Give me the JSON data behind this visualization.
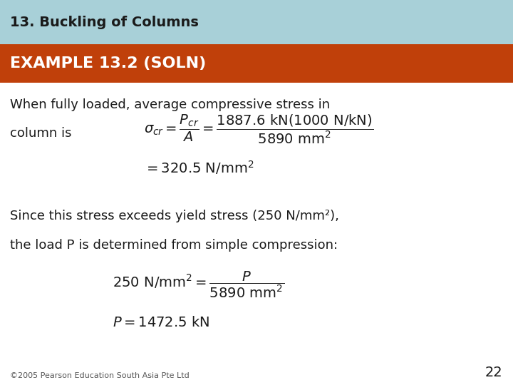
{
  "title_text": "13. Buckling of Columns",
  "title_bg": "#a8d0d8",
  "title_color": "#1a1a1a",
  "subtitle_text": "EXAMPLE 13.2 (SOLN)",
  "subtitle_bg": "#c0400a",
  "subtitle_color": "#ffffff",
  "body_bg": "#ffffff",
  "body_text_color": "#1a1a1a",
  "intro_line1": "When fully loaded, average compressive stress in",
  "intro_line2": "column is",
  "eq1_latex": "$\\sigma_{cr} = \\dfrac{P_{cr}}{A} = \\dfrac{1887.6 \\text{ kN}(1000 \\text{ N/kN})}{5890 \\text{ mm}^2}$",
  "eq2_latex": "$= 320.5 \\text{ N/mm}^2$",
  "body_text2_line1": "Since this stress exceeds yield stress (250 N/mm²),",
  "body_text2_line2": "the load P is determined from simple compression:",
  "eq3_latex": "$250 \\text{ N/mm}^2 = \\dfrac{P}{5890 \\text{ mm}^2}$",
  "eq4_latex": "$P = 1472.5 \\text{ kN}$",
  "footer_text": "©2005 Pearson Education South Asia Pte Ltd",
  "page_number": "22",
  "font_size_title": 14,
  "font_size_subtitle": 16,
  "font_size_body": 13,
  "font_size_eq": 13,
  "font_size_footer": 8
}
